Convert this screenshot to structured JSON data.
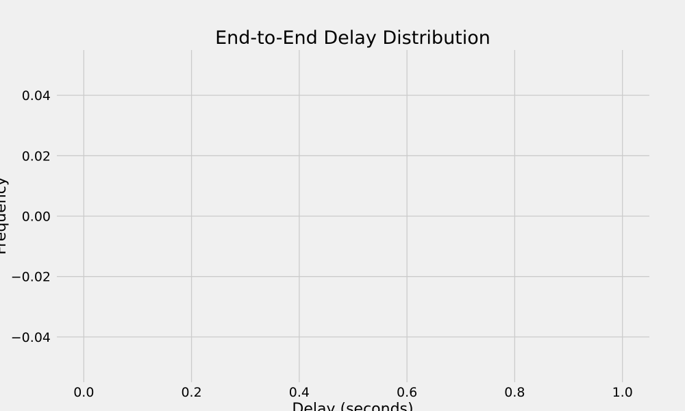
{
  "chart_data": {
    "type": "bar",
    "title": "End-to-End Delay Distribution",
    "xlabel": "Delay (seconds)",
    "ylabel": "Frequency",
    "xlim": [
      -0.05,
      1.05
    ],
    "ylim": [
      -0.055,
      0.055
    ],
    "x_ticks": [
      0.0,
      0.2,
      0.4,
      0.6,
      0.8,
      1.0
    ],
    "x_tick_labels": [
      "0.0",
      "0.2",
      "0.4",
      "0.6",
      "0.8",
      "1.0"
    ],
    "y_ticks": [
      -0.04,
      -0.02,
      0.0,
      0.02,
      0.04
    ],
    "y_tick_labels": [
      "−0.04",
      "−0.02",
      "0.00",
      "0.02",
      "0.04"
    ],
    "grid": true,
    "series": [],
    "colors": {
      "background": "#f0f0f0",
      "grid": "#cbcbcb",
      "text": "#000000"
    }
  }
}
